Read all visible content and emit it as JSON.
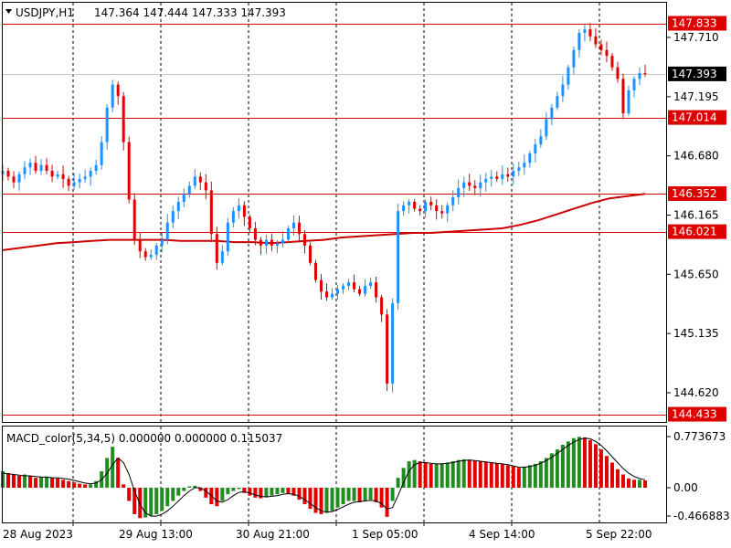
{
  "header": {
    "symbol": "USDJPY,H1",
    "ohlc": "147.364 147.444 147.333 147.393"
  },
  "indicator_header": "MACD_color(5,34,5) 0.000000 0.000000 0.115037",
  "colors": {
    "bull": "#228b22",
    "bear": "#e00000",
    "wick_up": "#1e90ff",
    "ma": "#cc0000",
    "level": "#dd0000",
    "grid": "#000000",
    "price_tag_bg": "#000000"
  },
  "chart_data": [
    {
      "type": "candlestick",
      "title": "USDJPY,H1",
      "y_ticks": [
        "147.710",
        "147.195",
        "146.680",
        "146.165",
        "145.650",
        "145.135",
        "144.620"
      ],
      "ylim": [
        144.43,
        147.85
      ],
      "x_ticks": [
        "28 Aug 2023",
        "29 Aug 13:00",
        "30 Aug 21:00",
        "1 Sep 05:00",
        "4 Sep 14:00",
        "5 Sep 22:00"
      ],
      "levels": [
        {
          "value": 147.833,
          "label": "147.833"
        },
        {
          "value": 147.014,
          "label": "147.014"
        },
        {
          "value": 146.352,
          "label": "146.352"
        },
        {
          "value": 146.021,
          "label": "146.021"
        },
        {
          "value": 144.433,
          "label": "144.433"
        }
      ],
      "current_price": {
        "value": 147.393,
        "label": "147.393"
      },
      "close_path": [
        146.55,
        146.5,
        146.45,
        146.52,
        146.58,
        146.62,
        146.55,
        146.6,
        146.55,
        146.5,
        146.52,
        146.48,
        146.42,
        146.45,
        146.48,
        146.5,
        146.55,
        146.6,
        146.8,
        147.1,
        147.3,
        147.2,
        146.8,
        146.3,
        145.95,
        145.85,
        145.8,
        145.82,
        145.9,
        145.95,
        146.1,
        146.2,
        146.28,
        146.35,
        146.42,
        146.5,
        146.45,
        146.38,
        146.0,
        145.75,
        145.85,
        146.1,
        146.2,
        146.25,
        146.15,
        146.05,
        145.95,
        145.9,
        145.95,
        145.9,
        145.92,
        145.95,
        146.05,
        146.1,
        146.0,
        145.9,
        145.75,
        145.6,
        145.5,
        145.45,
        145.48,
        145.52,
        145.55,
        145.58,
        145.52,
        145.48,
        145.55,
        145.58,
        145.45,
        145.3,
        144.7,
        145.4,
        146.2,
        146.25,
        146.28,
        146.22,
        146.2,
        146.28,
        146.25,
        146.2,
        146.18,
        146.25,
        146.32,
        146.4,
        146.45,
        146.42,
        146.4,
        146.45,
        146.48,
        146.5,
        146.48,
        146.52,
        146.5,
        146.55,
        146.58,
        146.62,
        146.7,
        146.78,
        146.85,
        147.0,
        147.1,
        147.2,
        147.3,
        147.45,
        147.6,
        147.75,
        147.78,
        147.72,
        147.65,
        147.6,
        147.55,
        147.45,
        147.35,
        147.05,
        147.25,
        147.35,
        147.4,
        147.393
      ],
      "ma_path": [
        145.86,
        145.88,
        145.9,
        145.92,
        145.93,
        145.94,
        145.95,
        145.95,
        145.95,
        145.95,
        145.94,
        145.94,
        145.94,
        145.93,
        145.93,
        145.92,
        145.93,
        145.94,
        145.95,
        145.97,
        145.98,
        145.99,
        146.0,
        146.01,
        146.01,
        146.02,
        146.03,
        146.04,
        146.05,
        146.08,
        146.12,
        146.17,
        146.22,
        146.27,
        146.31,
        146.33,
        146.35
      ],
      "macd": {
        "label": "MACD_color(5,34,5)",
        "y_ticks": [
          "0.773673",
          "0.00",
          "-0.466883"
        ],
        "ylim": [
          -0.466883,
          0.773673
        ],
        "values": [
          0.25,
          0.22,
          0.2,
          0.18,
          0.2,
          0.18,
          0.15,
          0.16,
          0.17,
          0.15,
          0.14,
          0.12,
          0.1,
          0.08,
          0.06,
          0.05,
          0.05,
          0.1,
          0.25,
          0.45,
          0.62,
          0.45,
          0.05,
          -0.2,
          -0.4,
          -0.46,
          -0.45,
          -0.42,
          -0.4,
          -0.35,
          -0.28,
          -0.2,
          -0.12,
          -0.05,
          0.02,
          0.03,
          -0.05,
          -0.15,
          -0.25,
          -0.28,
          -0.2,
          -0.1,
          -0.05,
          -0.02,
          -0.08,
          -0.12,
          -0.15,
          -0.16,
          -0.14,
          -0.12,
          -0.1,
          -0.08,
          -0.09,
          -0.12,
          -0.18,
          -0.25,
          -0.32,
          -0.38,
          -0.4,
          -0.38,
          -0.35,
          -0.3,
          -0.25,
          -0.2,
          -0.2,
          -0.22,
          -0.2,
          -0.18,
          -0.22,
          -0.3,
          -0.44,
          -0.2,
          0.15,
          0.3,
          0.4,
          0.42,
          0.4,
          0.38,
          0.36,
          0.36,
          0.37,
          0.38,
          0.4,
          0.42,
          0.43,
          0.42,
          0.41,
          0.4,
          0.39,
          0.38,
          0.37,
          0.36,
          0.34,
          0.32,
          0.3,
          0.32,
          0.34,
          0.36,
          0.4,
          0.45,
          0.52,
          0.58,
          0.65,
          0.7,
          0.75,
          0.77,
          0.76,
          0.72,
          0.66,
          0.58,
          0.48,
          0.38,
          0.28,
          0.2,
          0.14,
          0.12,
          0.12,
          0.11
        ],
        "signal": [
          0.22,
          0.21,
          0.2,
          0.19,
          0.18,
          0.18,
          0.17,
          0.16,
          0.16,
          0.15,
          0.15,
          0.14,
          0.13,
          0.11,
          0.09,
          0.07,
          0.06,
          0.07,
          0.12,
          0.22,
          0.35,
          0.45,
          0.38,
          0.2,
          -0.05,
          -0.25,
          -0.38,
          -0.43,
          -0.43,
          -0.4,
          -0.35,
          -0.28,
          -0.2,
          -0.12,
          -0.05,
          0.0,
          0.0,
          -0.05,
          -0.12,
          -0.2,
          -0.22,
          -0.18,
          -0.12,
          -0.07,
          -0.06,
          -0.08,
          -0.11,
          -0.13,
          -0.14,
          -0.13,
          -0.12,
          -0.1,
          -0.09,
          -0.1,
          -0.13,
          -0.18,
          -0.24,
          -0.3,
          -0.35,
          -0.37,
          -0.36,
          -0.33,
          -0.29,
          -0.25,
          -0.22,
          -0.21,
          -0.2,
          -0.19,
          -0.2,
          -0.24,
          -0.32,
          -0.3,
          -0.12,
          0.08,
          0.25,
          0.35,
          0.38,
          0.38,
          0.37,
          0.36,
          0.36,
          0.37,
          0.38,
          0.4,
          0.41,
          0.42,
          0.41,
          0.4,
          0.39,
          0.38,
          0.37,
          0.36,
          0.35,
          0.33,
          0.31,
          0.31,
          0.32,
          0.34,
          0.37,
          0.41,
          0.46,
          0.52,
          0.58,
          0.64,
          0.69,
          0.73,
          0.75,
          0.74,
          0.7,
          0.64,
          0.56,
          0.47,
          0.38,
          0.29,
          0.22,
          0.17,
          0.14,
          0.12
        ]
      }
    }
  ]
}
